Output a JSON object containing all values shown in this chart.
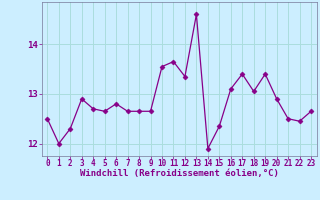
{
  "x": [
    0,
    1,
    2,
    3,
    4,
    5,
    6,
    7,
    8,
    9,
    10,
    11,
    12,
    13,
    14,
    15,
    16,
    17,
    18,
    19,
    20,
    21,
    22,
    23
  ],
  "y": [
    12.5,
    12.0,
    12.3,
    12.9,
    12.7,
    12.65,
    12.8,
    12.65,
    12.65,
    12.65,
    13.55,
    13.65,
    13.35,
    14.6,
    11.9,
    12.35,
    13.1,
    13.4,
    13.05,
    13.4,
    12.9,
    12.5,
    12.45,
    12.65
  ],
  "line_color": "#880088",
  "marker": "D",
  "marker_size": 2.5,
  "bg_color": "#cceeff",
  "grid_color": "#aadddd",
  "xlabel": "Windchill (Refroidissement éolien,°C)",
  "xlabel_color": "#880088",
  "tick_color": "#880088",
  "ylim": [
    11.75,
    14.85
  ],
  "yticks": [
    12,
    13,
    14
  ],
  "xlim": [
    -0.5,
    23.5
  ],
  "xticks": [
    0,
    1,
    2,
    3,
    4,
    5,
    6,
    7,
    8,
    9,
    10,
    11,
    12,
    13,
    14,
    15,
    16,
    17,
    18,
    19,
    20,
    21,
    22,
    23
  ]
}
